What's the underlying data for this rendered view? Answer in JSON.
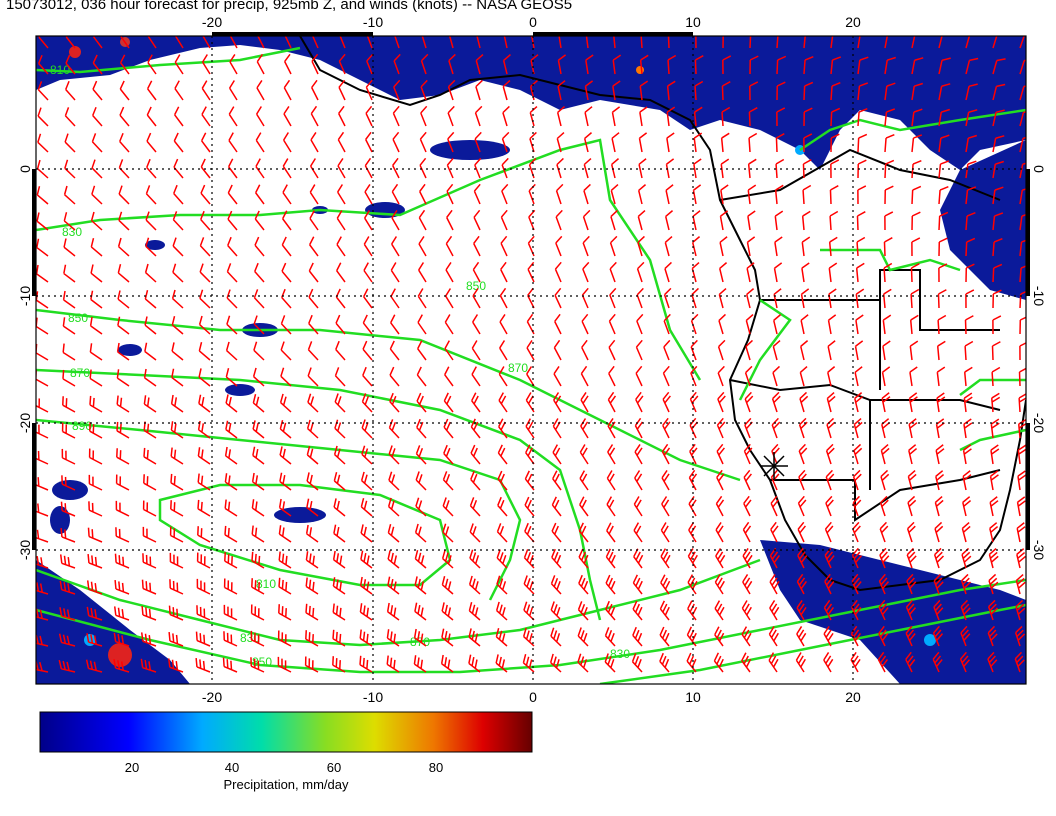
{
  "title": "15073012, 036 hour forecast for precip, 925mb Z, and winds (knots) -- NASA GEOS5",
  "map": {
    "lon_range": [
      -30,
      30
    ],
    "lat_range": [
      -40,
      9
    ],
    "lon_ticks": [
      "-20",
      "-10",
      "0",
      "10",
      "20"
    ],
    "lat_ticks": [
      "0",
      "-10",
      "-20",
      "-30"
    ],
    "grid": "dotted",
    "contour_labels": [
      "810",
      "830",
      "850",
      "870",
      "890",
      "870",
      "850",
      "830",
      "810",
      "830",
      "850",
      "870"
    ],
    "marker": "star"
  },
  "colorbar": {
    "ticks": [
      "20",
      "40",
      "60",
      "80"
    ],
    "label": "Precipitation, mm/day",
    "range": [
      0,
      98
    ]
  },
  "colors": {
    "precip_low": "#00008b",
    "contour": "#22dd22",
    "barb": "#ff0000",
    "coast": "#000000"
  }
}
